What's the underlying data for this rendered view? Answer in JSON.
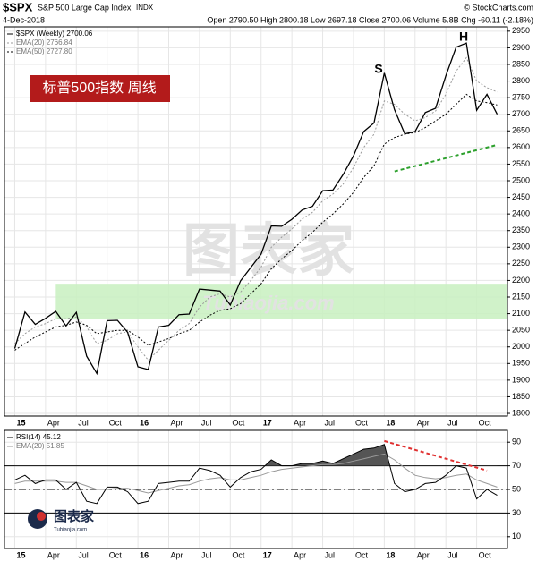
{
  "chart_data": [
    {
      "type": "line",
      "symbol": "$SPX",
      "title": "S&P 500 Large Cap Index",
      "exchange": "INDX",
      "source": "© StockCharts.com",
      "date": "4-Dec-2018",
      "quote": "Open 2790.50 High 2800.18 Low 2697.18 Close 2700.06 Volume 5.8B Chg -60.11 (-2.18%)",
      "label_box": "标普500指数 周线",
      "annotations": [
        "S",
        "H"
      ],
      "watermark": [
        "图表家",
        "Tubiaojia.com"
      ],
      "x": [
        "2015-01",
        "2015-02",
        "2015-03",
        "2015-04",
        "2015-05",
        "2015-06",
        "2015-07",
        "2015-08",
        "2015-09",
        "2015-10",
        "2015-11",
        "2015-12",
        "2016-01",
        "2016-02",
        "2016-03",
        "2016-04",
        "2016-05",
        "2016-06",
        "2016-07",
        "2016-08",
        "2016-09",
        "2016-10",
        "2016-11",
        "2016-12",
        "2017-01",
        "2017-02",
        "2017-03",
        "2017-04",
        "2017-05",
        "2017-06",
        "2017-07",
        "2017-08",
        "2017-09",
        "2017-10",
        "2017-11",
        "2017-12",
        "2018-01",
        "2018-02",
        "2018-03",
        "2018-04",
        "2018-05",
        "2018-06",
        "2018-07",
        "2018-08",
        "2018-09",
        "2018-10",
        "2018-11",
        "2018-12"
      ],
      "series": [
        {
          "name": "$SPX (Weekly) 2700.06",
          "color": "#000000",
          "values": [
            1995,
            2105,
            2068,
            2086,
            2107,
            2063,
            2104,
            1972,
            1920,
            2079,
            2080,
            2044,
            1940,
            1932,
            2060,
            2065,
            2097,
            2099,
            2174,
            2171,
            2168,
            2126,
            2199,
            2239,
            2279,
            2364,
            2363,
            2384,
            2412,
            2423,
            2470,
            2472,
            2519,
            2575,
            2648,
            2674,
            2824,
            2714,
            2641,
            2648,
            2705,
            2718,
            2816,
            2902,
            2914,
            2712,
            2760,
            2700
          ]
        },
        {
          "name": "EMA(20) 2766.84",
          "color": "#999999",
          "values": [
            2010,
            2040,
            2060,
            2070,
            2085,
            2085,
            2090,
            2060,
            2010,
            2020,
            2040,
            2045,
            2000,
            1960,
            1990,
            2020,
            2050,
            2070,
            2120,
            2150,
            2160,
            2150,
            2165,
            2200,
            2240,
            2300,
            2330,
            2355,
            2385,
            2405,
            2440,
            2460,
            2490,
            2540,
            2600,
            2640,
            2740,
            2730,
            2700,
            2680,
            2690,
            2710,
            2760,
            2830,
            2870,
            2800,
            2780,
            2767
          ]
        },
        {
          "name": "EMA(50) 2727.80",
          "color": "#000000",
          "values": [
            1990,
            2010,
            2030,
            2045,
            2060,
            2065,
            2075,
            2065,
            2040,
            2045,
            2050,
            2050,
            2030,
            2005,
            2015,
            2025,
            2040,
            2050,
            2075,
            2095,
            2110,
            2115,
            2130,
            2160,
            2190,
            2235,
            2265,
            2290,
            2320,
            2345,
            2375,
            2400,
            2430,
            2465,
            2510,
            2545,
            2610,
            2630,
            2640,
            2645,
            2660,
            2680,
            2700,
            2730,
            2760,
            2740,
            2735,
            2728
          ]
        }
      ],
      "support_band": {
        "from": "2015-05",
        "low": 2085,
        "high": 2190,
        "color": "#c8f0c0"
      },
      "trendline": {
        "x": [
          "2018-02",
          "2018-12"
        ],
        "y": [
          2528,
          2608
        ],
        "color": "#2ca02c"
      },
      "xlim": [
        "2014-12",
        "2019-01"
      ],
      "xticks": [
        {
          "value": "2015-01",
          "label": "15"
        },
        {
          "value": "2015-04",
          "label": "Apr"
        },
        {
          "value": "2015-07",
          "label": "Jul"
        },
        {
          "value": "2015-10",
          "label": "Oct"
        },
        {
          "value": "2016-01",
          "label": "16"
        },
        {
          "value": "2016-04",
          "label": "Apr"
        },
        {
          "value": "2016-07",
          "label": "Jul"
        },
        {
          "value": "2016-10",
          "label": "Oct"
        },
        {
          "value": "2017-01",
          "label": "17"
        },
        {
          "value": "2017-04",
          "label": "Apr"
        },
        {
          "value": "2017-07",
          "label": "Jul"
        },
        {
          "value": "2017-10",
          "label": "Oct"
        },
        {
          "value": "2018-01",
          "label": "18"
        },
        {
          "value": "2018-04",
          "label": "Apr"
        },
        {
          "value": "2018-07",
          "label": "Jul"
        },
        {
          "value": "2018-10",
          "label": "Oct"
        }
      ],
      "ylim": [
        1792,
        2963
      ],
      "yticks": [
        1800,
        1850,
        1900,
        1950,
        2000,
        2050,
        2100,
        2150,
        2200,
        2250,
        2300,
        2350,
        2400,
        2450,
        2500,
        2550,
        2600,
        2650,
        2700,
        2750,
        2800,
        2850,
        2900,
        2950
      ],
      "grid": true
    },
    {
      "type": "line",
      "logo": [
        "图表家",
        "Tubiaojia.com"
      ],
      "x": [
        "2015-01",
        "2015-02",
        "2015-03",
        "2015-04",
        "2015-05",
        "2015-06",
        "2015-07",
        "2015-08",
        "2015-09",
        "2015-10",
        "2015-11",
        "2015-12",
        "2016-01",
        "2016-02",
        "2016-03",
        "2016-04",
        "2016-05",
        "2016-06",
        "2016-07",
        "2016-08",
        "2016-09",
        "2016-10",
        "2016-11",
        "2016-12",
        "2017-01",
        "2017-02",
        "2017-03",
        "2017-04",
        "2017-05",
        "2017-06",
        "2017-07",
        "2017-08",
        "2017-09",
        "2017-10",
        "2017-11",
        "2017-12",
        "2018-01",
        "2018-02",
        "2018-03",
        "2018-04",
        "2018-05",
        "2018-06",
        "2018-07",
        "2018-08",
        "2018-09",
        "2018-10",
        "2018-11",
        "2018-12"
      ],
      "series": [
        {
          "name": "RSI(14) 45.12",
          "color": "#000000",
          "values": [
            58,
            62,
            55,
            58,
            58,
            50,
            56,
            40,
            38,
            52,
            52,
            48,
            38,
            40,
            55,
            56,
            57,
            57,
            68,
            66,
            62,
            52,
            60,
            65,
            67,
            75,
            70,
            70,
            72,
            72,
            74,
            72,
            76,
            80,
            84,
            85,
            88,
            55,
            48,
            50,
            55,
            56,
            62,
            70,
            68,
            42,
            50,
            45
          ]
        },
        {
          "name": "EMA(20) 51.85",
          "color": "#999999",
          "values": [
            55,
            57,
            57,
            57,
            57,
            56,
            56,
            53,
            50,
            50,
            51,
            51,
            49,
            47,
            49,
            51,
            53,
            54,
            57,
            59,
            60,
            58,
            58,
            60,
            62,
            65,
            67,
            68,
            69,
            70,
            71,
            71,
            72,
            74,
            76,
            78,
            80,
            75,
            68,
            62,
            60,
            59,
            60,
            62,
            63,
            58,
            55,
            52
          ]
        }
      ],
      "levels": [
        70,
        50,
        30
      ],
      "fill_above": 70,
      "fill_color": "#555555",
      "trendline": {
        "x": [
          "2018-01",
          "2018-11"
        ],
        "y": [
          91,
          66
        ],
        "color": "#e03030"
      },
      "xlim": [
        "2014-12",
        "2019-01"
      ],
      "xticks": [
        {
          "value": "2015-01",
          "label": "15"
        },
        {
          "value": "2015-04",
          "label": "Apr"
        },
        {
          "value": "2015-07",
          "label": "Jul"
        },
        {
          "value": "2015-10",
          "label": "Oct"
        },
        {
          "value": "2016-01",
          "label": "16"
        },
        {
          "value": "2016-04",
          "label": "Apr"
        },
        {
          "value": "2016-07",
          "label": "Jul"
        },
        {
          "value": "2016-10",
          "label": "Oct"
        },
        {
          "value": "2017-01",
          "label": "17"
        },
        {
          "value": "2017-04",
          "label": "Apr"
        },
        {
          "value": "2017-07",
          "label": "Jul"
        },
        {
          "value": "2017-10",
          "label": "Oct"
        },
        {
          "value": "2018-01",
          "label": "18"
        },
        {
          "value": "2018-04",
          "label": "Apr"
        },
        {
          "value": "2018-07",
          "label": "Jul"
        },
        {
          "value": "2018-10",
          "label": "Oct"
        }
      ],
      "ylim": [
        0,
        100
      ],
      "yticks": [
        10,
        30,
        50,
        70,
        90
      ],
      "grid": true
    }
  ]
}
